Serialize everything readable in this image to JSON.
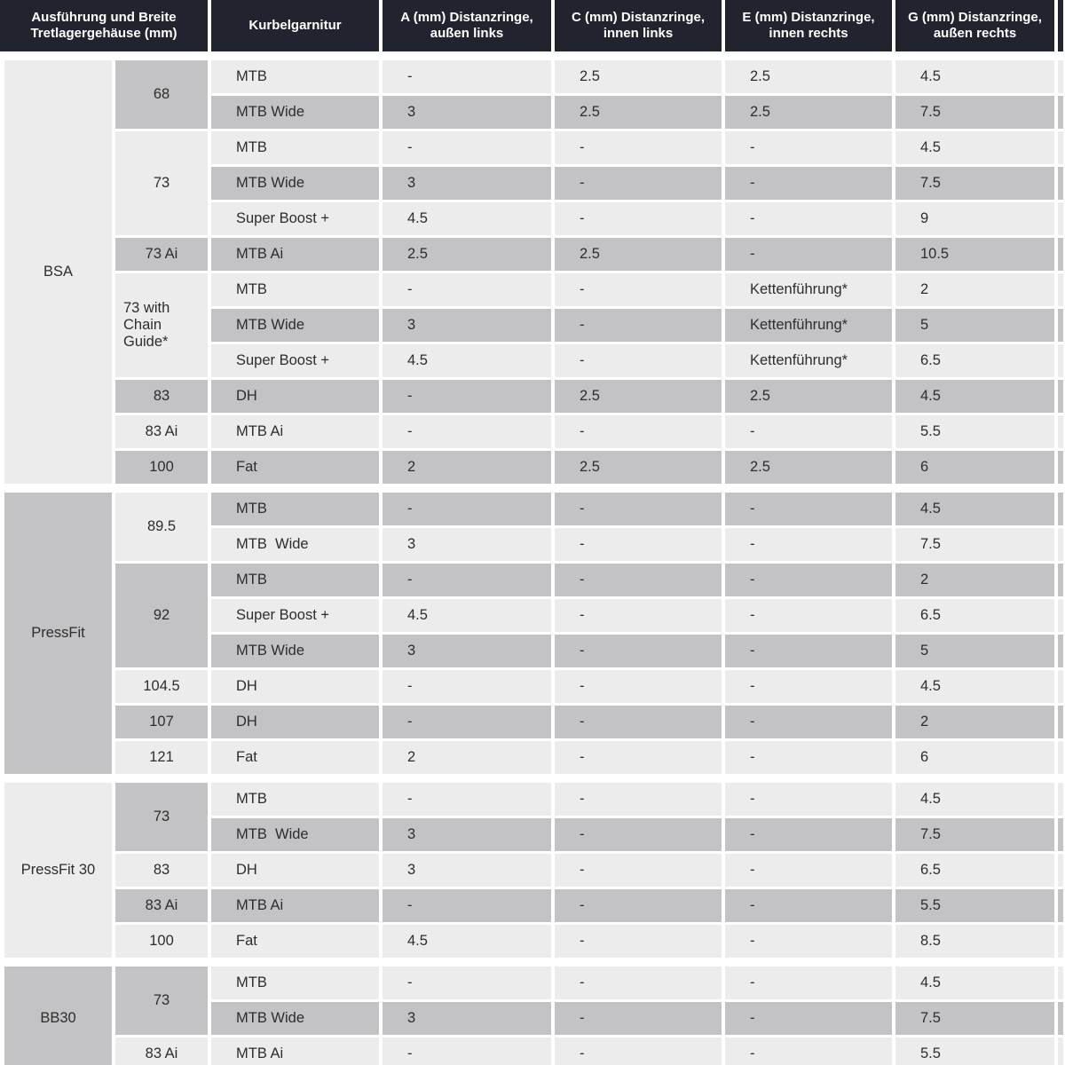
{
  "colors": {
    "header_bg": "#21242e",
    "header_text": "#ffffff",
    "row_light": "#ececec",
    "row_dark": "#c3c3c5",
    "body_text": "#2d2d2d",
    "gap_white": "#ffffff"
  },
  "chart_data": {
    "type": "table",
    "columns": [
      "Ausführung und Breite Tretlagergehäuse (mm)",
      "Kurbelgarnitur",
      "A (mm) Distanzringe, außen links",
      "C (mm) Distanzringe, innen links",
      "E (mm) Distanzringe, innen rechts",
      "G (mm) Distanzringe, außen rechts"
    ],
    "sections": [
      {
        "name": "BSA",
        "group_shade": "light",
        "row_start_shade": "light",
        "size_start_shade": "dark",
        "size_groups": [
          {
            "size": "68",
            "rows": [
              {
                "crank": "MTB",
                "a": "-",
                "c": "2.5",
                "e": "2.5",
                "g": "4.5"
              },
              {
                "crank": "MTB Wide",
                "a": "3",
                "c": "2.5",
                "e": "2.5",
                "g": "7.5"
              }
            ]
          },
          {
            "size": "73",
            "rows": [
              {
                "crank": "MTB",
                "a": "-",
                "c": "-",
                "e": "-",
                "g": "4.5"
              },
              {
                "crank": "MTB Wide",
                "a": "3",
                "c": "-",
                "e": "-",
                "g": "7.5"
              },
              {
                "crank": "Super Boost +",
                "a": "4.5",
                "c": "-",
                "e": "-",
                "g": "9"
              }
            ]
          },
          {
            "size": "73 Ai",
            "rows": [
              {
                "crank": "MTB Ai",
                "a": "2.5",
                "c": "2.5",
                "e": "-",
                "g": "10.5"
              }
            ]
          },
          {
            "size": "73 with Chain Guide*",
            "rows": [
              {
                "crank": "MTB",
                "a": "-",
                "c": "-",
                "e": "Kettenführung*",
                "g": "2"
              },
              {
                "crank": "MTB Wide",
                "a": "3",
                "c": "-",
                "e": "Kettenführung*",
                "g": "5"
              },
              {
                "crank": "Super Boost +",
                "a": "4.5",
                "c": "-",
                "e": "Kettenführung*",
                "g": "6.5"
              }
            ]
          },
          {
            "size": "83",
            "rows": [
              {
                "crank": "DH",
                "a": "-",
                "c": "2.5",
                "e": "2.5",
                "g": "4.5"
              }
            ]
          },
          {
            "size": "83 Ai",
            "rows": [
              {
                "crank": "MTB Ai",
                "a": "-",
                "c": "-",
                "e": "-",
                "g": "5.5"
              }
            ]
          },
          {
            "size": "100",
            "rows": [
              {
                "crank": "Fat",
                "a": "2",
                "c": "2.5",
                "e": "2.5",
                "g": "6"
              }
            ]
          }
        ]
      },
      {
        "name": "PressFit",
        "group_shade": "dark",
        "row_start_shade": "dark",
        "size_start_shade": "light",
        "size_groups": [
          {
            "size": "89.5",
            "rows": [
              {
                "crank": "MTB",
                "a": "-",
                "c": "-",
                "e": "-",
                "g": "4.5"
              },
              {
                "crank": "MTB  Wide",
                "a": "3",
                "c": "-",
                "e": "-",
                "g": "7.5"
              }
            ]
          },
          {
            "size": "92",
            "rows": [
              {
                "crank": "MTB",
                "a": "-",
                "c": "-",
                "e": "-",
                "g": "2"
              },
              {
                "crank": "Super Boost +",
                "a": "4.5",
                "c": "-",
                "e": "-",
                "g": "6.5"
              },
              {
                "crank": "MTB Wide",
                "a": "3",
                "c": "-",
                "e": "-",
                "g": "5"
              }
            ]
          },
          {
            "size": "104.5",
            "rows": [
              {
                "crank": "DH",
                "a": "-",
                "c": "-",
                "e": "-",
                "g": "4.5"
              }
            ]
          },
          {
            "size": "107",
            "rows": [
              {
                "crank": "DH",
                "a": "-",
                "c": "-",
                "e": "-",
                "g": "2"
              }
            ]
          },
          {
            "size": "121",
            "rows": [
              {
                "crank": "Fat",
                "a": "2",
                "c": "-",
                "e": "-",
                "g": "6"
              }
            ]
          }
        ]
      },
      {
        "name": "PressFit 30",
        "group_shade": "light",
        "row_start_shade": "light",
        "size_start_shade": "dark",
        "size_groups": [
          {
            "size": "73",
            "rows": [
              {
                "crank": "MTB",
                "a": "-",
                "c": "-",
                "e": "-",
                "g": "4.5"
              },
              {
                "crank": "MTB  Wide",
                "a": "3",
                "c": "-",
                "e": "-",
                "g": "7.5"
              }
            ]
          },
          {
            "size": "83",
            "rows": [
              {
                "crank": "DH",
                "a": "3",
                "c": "-",
                "e": "-",
                "g": "6.5"
              }
            ]
          },
          {
            "size": "83 Ai",
            "rows": [
              {
                "crank": "MTB Ai",
                "a": "-",
                "c": "-",
                "e": "-",
                "g": "5.5"
              }
            ]
          },
          {
            "size": "100",
            "rows": [
              {
                "crank": "Fat",
                "a": "4.5",
                "c": "-",
                "e": "-",
                "g": "8.5"
              }
            ]
          }
        ]
      },
      {
        "name": "BB30",
        "group_shade": "dark",
        "row_start_shade": "light",
        "size_start_shade": "dark",
        "size_groups": [
          {
            "size": "73",
            "rows": [
              {
                "crank": "MTB",
                "a": "-",
                "c": "-",
                "e": "-",
                "g": "4.5"
              },
              {
                "crank": "MTB Wide",
                "a": "3",
                "c": "-",
                "e": "-",
                "g": "7.5"
              }
            ]
          },
          {
            "size": "83 Ai",
            "rows": [
              {
                "crank": "MTB Ai",
                "a": "-",
                "c": "-",
                "e": "-",
                "g": "5.5"
              }
            ]
          }
        ]
      }
    ]
  }
}
